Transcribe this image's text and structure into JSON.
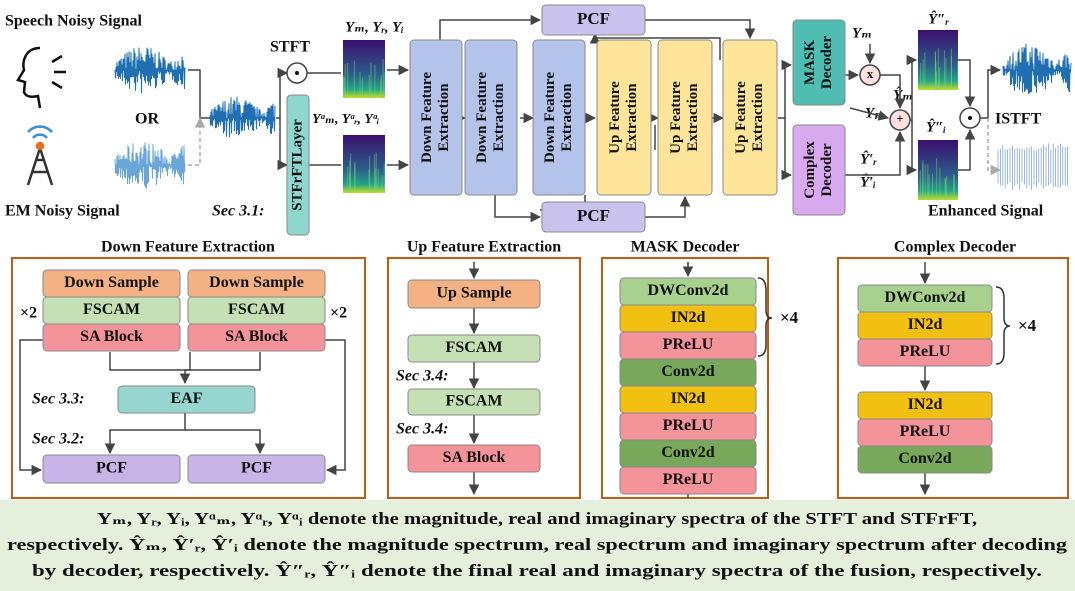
{
  "inputs": {
    "speech": "Speech Noisy Signal",
    "or": "OR",
    "em": "EM Noisy Signal"
  },
  "top": {
    "stft": "STFT",
    "stfrft": "STFrFTLayer",
    "stft_spectra": "Yₘ, Yᵣ, Yᵢ",
    "stfrft_spectra": "Yᵅₘ, Yᵅᵣ, Yᵅᵢ",
    "sec31": "Sec 3.1:",
    "down_blocks": [
      [
        "Down Feature",
        "Extraction"
      ],
      [
        "Down Feature",
        "Extraction"
      ],
      [
        "Down Feature",
        "Extraction"
      ]
    ],
    "up_blocks": [
      [
        "Up Feature",
        "Extraction"
      ],
      [
        "Up Feature",
        "Extraction"
      ],
      [
        "Up Feature",
        "Extraction"
      ]
    ],
    "pcf_top": "PCF",
    "pcf_bottom": "PCF",
    "mask_decoder": [
      "MASK",
      "Decoder"
    ],
    "complex_decoder": [
      "Complex",
      "Decoder"
    ],
    "ym": "Yₘ",
    "multiply": "x",
    "ym_hat": "Ŷₘ",
    "yp": "Yₚ",
    "plus": "+",
    "yr_hat": "Ŷ′ᵣ",
    "yi_hat": "Ŷ′ᵢ",
    "yr_final": "Ŷ″ᵣ",
    "yi_final": "Ŷ″ᵢ",
    "istft": "ISTFT",
    "enhanced": "Enhanced Signal"
  },
  "panels": {
    "down": {
      "title": "Down Feature Extraction",
      "down_sample": [
        "Down  Sample",
        "Down  Sample"
      ],
      "fscam": [
        "FSCAM",
        "FSCAM"
      ],
      "sa_block": [
        "SA Block",
        "SA Block"
      ],
      "repeat": [
        "×2",
        "×2"
      ],
      "sec33": "Sec 3.3:",
      "eaf": "EAF",
      "sec32": "Sec 3.2:",
      "pcf": [
        "PCF",
        "PCF"
      ]
    },
    "up": {
      "title": "Up Feature Extraction",
      "up_sample": "Up  Sample",
      "fscam_1": "FSCAM",
      "sec34_1": "Sec 3.4:",
      "fscam_2": "FSCAM",
      "sec34_2": "Sec 3.4:",
      "sa_block": "SA Block"
    },
    "mask": {
      "title": "MASK Decoder",
      "layers": [
        "DWConv2d",
        "IN2d",
        "PReLU",
        "Conv2d",
        "IN2d",
        "PReLU",
        "Conv2d",
        "PReLU"
      ],
      "repeat": "×4"
    },
    "complex": {
      "title": "Complex Decoder",
      "layers": [
        "DWConv2d",
        "IN2d",
        "PReLU",
        "IN2d",
        "PReLU",
        "Conv2d"
      ],
      "repeat": "×4"
    }
  },
  "caption": [
    "Yₘ, Yᵣ, Yᵢ, Yᵅₘ, Yᵅᵣ, Yᵅᵢ  denote the magnitude, real and imaginary spectra of the STFT and STFrFT,",
    "respectively. Ŷₘ, Ŷ′ᵣ, Ŷ′ᵢ denote the magnitude spectrum, real spectrum and imaginary spectrum after decoding",
    "by decoder, respectively. Ŷ″ᵣ, Ŷ″ᵢ denote the final real and imaginary spectra of the fusion, respectively."
  ]
}
